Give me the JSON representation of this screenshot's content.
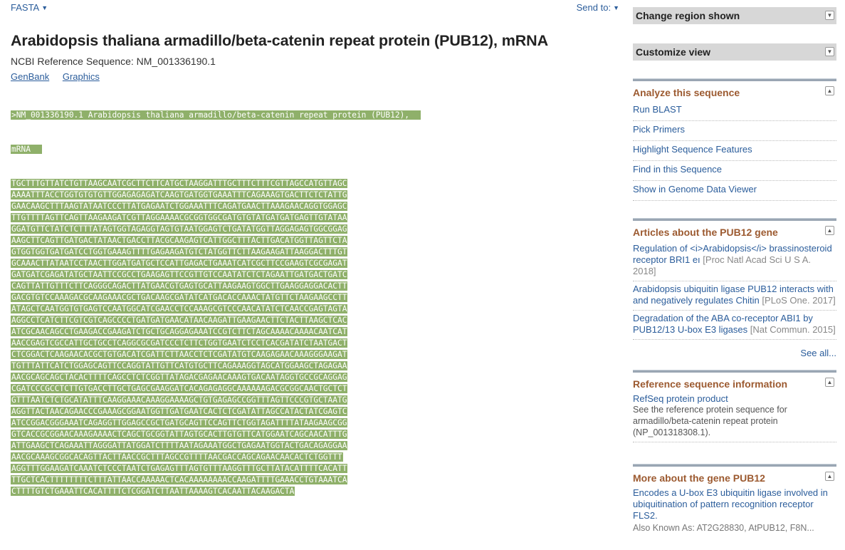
{
  "topbar": {
    "format_label": "FASTA",
    "sendto_label": "Send to:"
  },
  "record": {
    "title": "Arabidopsis thaliana armadillo/beta-catenin repeat protein (PUB12), mRNA",
    "refseq_line": "NCBI Reference Sequence: NM_001336190.1",
    "view_links": [
      "GenBank",
      "Graphics"
    ]
  },
  "fasta": {
    "header_lines": [
      ">NM_001336190.1 Arabidopsis thaliana armadillo/beta-catenin repeat protein (PUB12),",
      "mRNA"
    ],
    "sequence_lines": [
      "TGCTTTGTTATCTGTTAAGCAATCGCTTCTTCATGCTAAGGATTTGCTTTCTTTCGTTAGCCATGTTAGC",
      "AAAATTTACCTGGTGTGTGTTGGAGAGAGATCAAGTGATGGTGAAATTTCAGAAAGTGACTTCTCTATTG",
      "GAACAAGCTTTAAGTATAATCCCTTATGAGAATCTGGAAATTTCAGATGAACTTAAAGAACAGGTGGAGC",
      "TTGTTTTAGTTCAGTTAAGAAGATCGTTAGGAAAACGCGGTGGCGATGTGTATGATGATGAGTTGTATAA",
      "GGATGTTCTATCTCTTTATAGTGGTAGAGGTAGTGTAATGGAGTCTGATATGGTTAGGAGAGTGGCGGAG",
      "AAGCTTCAGTTGATGACTATAACTGACCTTACGCAAGAGTCATTGGCTTTACTTGACATGGTTAGTTCTA",
      "GTGGTGGTGATGATCCTGGTGAAAGTTTTGAGAAGATGTCTATGGTTCTTAAGAAGATTAAGGACTTTGT",
      "GCAAACTTATAATCCTAACTTGGATGATGCTCCATTGAGACTGAAATCATCGCTTCCGAAGTCGCGAGAT",
      "GATGATCGAGATATGCTAATTCCGCCTGAAGAGTTCCGTTGTCCAATATCTCTAGAATTGATGACTGATC",
      "CAGTTATTGTTTCTTCAGGGCAGACTTATGAACGTGAGTGCATTAAGAAGTGGCTTGAAGGAGGACACTT",
      "GACGTGTCCAAAGACGCAAGAAACGCTGACAAGCGATATCATGACACCAAACTATGTTCTAAGAAGCCTT",
      "ATAGCTCAATGGTGTGAGTCCAATGGCATCGAACCTCCAAAGCGTCCCAACATATCTCAACCGAGTAGTA",
      "AGGCCTCATCTTCGTCGTCAGCCCCTGATGATGAACATAACAAGATTGAAGAACTTCTACTTAAGCTCAC",
      "ATCGCAACAGCCTGAAGACCGAAGATCTGCTGCAGGAGAAATCCGTCTTCTAGCAAAACAAAACAATCAT",
      "AACCGAGTCGCCATTGCTGCCTCAGGCGCGATCCCTCTTCTGGTGAATCTCCTCACGATATCTAATGACT",
      "CTCGGACTCAAGAACACGCTGTGACATCGATTCTTAACCTCTCGATATGTCAAGAGAACAAAGGGAAGAT",
      "TGTTTATTCATCTGGAGCAGTTCCAGGTATTGTTCATGTGCTTCAGAAAGGTAGCATGGAAGCTAGAGAA",
      "AACGCAGCAGCTACACTTTTCAGCCTCTCGGTTATAGACGAGAACAAAGTGACAATAGGTGCCGCAGGAG",
      "CGATCCCGCCTCTTGTGACCTTGCTGAGCGAAGGATCACAGAGAGGCAAAAAAGACGCGGCAACTGCTCT",
      "GTTTAATCTCTGCATATTTCAAGGAAACAAAGGAAAAGCTGTGAGAGCCGGTTTAGTTCCCGTGCTAATG",
      "AGGTTACTAACAGAACCCGAAAGCGGAATGGTTGATGAATCACTCTCGATATTAGCCATACTATCGAGTC",
      "ATCCGGACGGGAAATCAGAGGTTGGAGCCGCTGATGCAGTTCCAGTTCTGGTAGATTTTATAAGAAGCGG",
      "GTCACCGCGGAACAAAGAAAACTCAGCTGCGGTATTAGTGCACTTGTGTTCATGGAATCAGCAACATTTG",
      "ATTGAAGCTCAGAAATTAGGGATTATGGATCTTTTAATAGAAATGGCTGAGAATGGTACTGACAGAGGAA",
      "AACGCAAAGCGGCACAGTTACTTAACCGCTTTAGCCGTTTTAACGACCAGCAGAACAACACTCTGGTTT",
      "AGGTTTGGAAGATCAAATCTCCCTAATCTGAGAGTTTAGTGTTTAAGGTTTGCTTATACATTTTCACATT",
      "TTGCTCACTTTTTTTTCTTTATTAACCAAAAACTCACAAAAAAAACCAAGATTTTGAAACCTGTAAATCA",
      "CTTTTGTCTGAAATTCACATTTTCTCGGATCTTAATTAAAAGTCACAATTACAAGACTA"
    ],
    "highlight_color": "#8fb06a"
  },
  "sidebar": {
    "collapsed": [
      {
        "label": "Change region shown"
      },
      {
        "label": "Customize view"
      }
    ],
    "analyze": {
      "heading": "Analyze this sequence",
      "items": [
        "Run BLAST",
        "Pick Primers",
        "Highlight Sequence Features",
        "Find in this Sequence",
        "Show in Genome Data Viewer"
      ]
    },
    "articles": {
      "heading": "Articles about the PUB12 gene",
      "items": [
        {
          "title": "Regulation of <i>Arabidopsis</i> brassinosteroid receptor BRI1 eı",
          "source": "[Proc Natl Acad Sci U S A. 2018]"
        },
        {
          "title": "Arabidopsis ubiquitin ligase PUB12 interacts with and negatively regulates Chitin",
          "source": "[PLoS One. 2017]"
        },
        {
          "title": "Degradation of the ABA co-receptor ABI1 by PUB12/13 U-box E3 ligases",
          "source": "[Nat Commun. 2015]"
        }
      ],
      "see_all": "See all..."
    },
    "refinfo": {
      "heading": "Reference sequence information",
      "link": "RefSeq protein product",
      "description": "See the reference protein sequence for armadillo/beta-catenin repeat protein (NP_001318308.1)."
    },
    "more": {
      "heading": "More about the gene PUB12",
      "link": "Encodes a U-box E3 ubiquitin ligase involved in ubiquitination of pattern recognition receptor FLS2.",
      "aka": "Also Known As: AT2G28830, AtPUB12, F8N..."
    }
  }
}
